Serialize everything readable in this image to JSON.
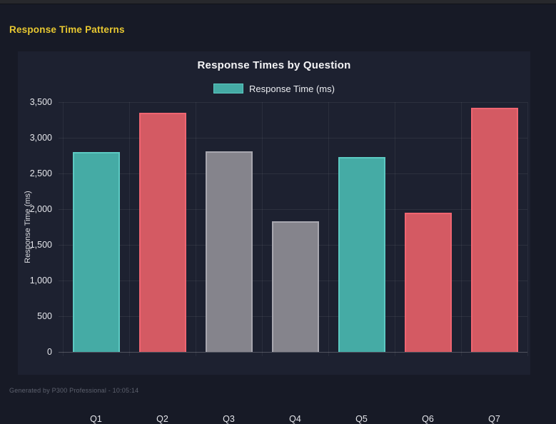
{
  "window": {
    "header_title": "Response Time Patterns",
    "footer_text": "Generated by P300 Professional - 10:05:14"
  },
  "chart_data": {
    "type": "bar",
    "title": "Response Times by Question",
    "legend": [
      {
        "label": "Response Time (ms)",
        "swatch_color": "#45aba5"
      }
    ],
    "categories": [
      "Q1",
      "Q2",
      "Q3",
      "Q4",
      "Q5",
      "Q6",
      "Q7"
    ],
    "series": [
      {
        "name": "Response Time (ms)",
        "values": [
          2800,
          3350,
          2810,
          1830,
          2730,
          1950,
          3420
        ]
      }
    ],
    "bar_color_keys": [
      "teal",
      "red",
      "gray",
      "gray",
      "teal",
      "red",
      "red"
    ],
    "palette": {
      "teal": {
        "fill": "#45aba5",
        "border": "#5cc9c2"
      },
      "red": {
        "fill": "#d45a63",
        "border": "#ef6571"
      },
      "gray": {
        "fill": "#85848c",
        "border": "#a8a7af"
      }
    },
    "xlabel": "",
    "ylabel": "Response Time (ms)",
    "ylim": [
      0,
      3500
    ],
    "ytick_step": 500,
    "ytick_labels": [
      "3,500",
      "3,000",
      "2,500",
      "2,000",
      "1,500",
      "1,000",
      "500",
      "0"
    ],
    "grid": true,
    "legend_position": "top",
    "background": "#1d2130",
    "page_background": "#171a26",
    "accent_text_color": "#e8c831"
  }
}
